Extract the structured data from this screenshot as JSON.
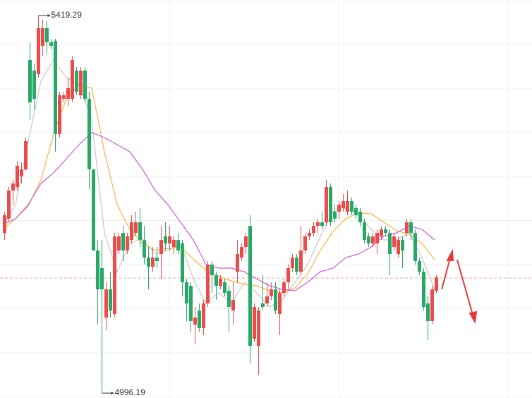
{
  "chart_data": {
    "type": "candlestick",
    "up_color": "#eb4b4b",
    "down_color": "#25a868",
    "ylim": [
      4990.7,
      5436.7
    ],
    "grid": true,
    "price_line": 5125.1,
    "price_line_color": "#f0a0a8",
    "open": [
      5175.7,
      5191.6,
      5223.2,
      5227.1,
      5239.0,
      5246.9,
      5369.5,
      5357.6,
      5353.7,
      5385.3,
      5405.1,
      5389.3,
      5390.8,
      5286.5,
      5326.0,
      5326.0,
      5326.0,
      5357.6,
      5329.9,
      5357.6,
      5326.0,
      5246.9,
      5156.0,
      5136.2,
      5080.8,
      5112.5,
      5084.8,
      5156.0,
      5175.7,
      5156.0,
      5167.8,
      5175.7,
      5187.6,
      5167.8,
      5148.1,
      5137.8,
      5148.1,
      5152.0,
      5171.8,
      5163.9,
      5159.9,
      5167.8,
      5163.9,
      5120.4,
      5116.4,
      5072.9,
      5088.8,
      5069.0,
      5096.7,
      5140.2,
      5128.3,
      5116.4,
      5120.4,
      5110.9,
      5088.8,
      5132.2,
      5148.1,
      5159.9,
      5183.6,
      5057.1,
      5049.2,
      5096.7,
      5096.7,
      5104.6,
      5112.5,
      5084.8,
      5108.5,
      5120.4,
      5136.2,
      5148.1,
      5132.2,
      5156.0,
      5171.8,
      5175.7,
      5183.6,
      5187.6,
      5187.6,
      5227.1,
      5199.5,
      5199.5,
      5203.4,
      5199.5,
      5211.3,
      5203.4,
      5199.5,
      5187.6,
      5171.8,
      5163.9,
      5163.9,
      5171.8,
      5179.7,
      5175.7,
      5159.9,
      5152.0,
      5167.8,
      5175.7,
      5187.6,
      5175.7,
      5144.1,
      5132.2,
      5096.7,
      5076.9,
      5110.9
    ],
    "close": [
      5195.5,
      5223.2,
      5231.1,
      5250.9,
      5246.9,
      5278.5,
      5322.0,
      5326.0,
      5405.1,
      5405.1,
      5389.3,
      5385.3,
      5286.5,
      5329.9,
      5329.9,
      5337.9,
      5369.5,
      5333.9,
      5357.6,
      5326.0,
      5246.9,
      5156.0,
      5112.5,
      5112.5,
      5112.5,
      5088.8,
      5171.8,
      5171.8,
      5156.0,
      5171.8,
      5187.6,
      5187.6,
      5167.8,
      5148.1,
      5137.8,
      5148.1,
      5144.1,
      5167.8,
      5163.9,
      5171.8,
      5167.8,
      5156.0,
      5120.4,
      5096.7,
      5076.9,
      5080.8,
      5069.0,
      5096.7,
      5140.2,
      5128.3,
      5116.4,
      5124.3,
      5108.5,
      5092.7,
      5100.6,
      5152.0,
      5159.9,
      5171.8,
      5049.2,
      5092.7,
      5088.8,
      5092.7,
      5104.6,
      5112.5,
      5088.8,
      5108.5,
      5120.4,
      5136.2,
      5148.1,
      5132.2,
      5156.0,
      5171.8,
      5175.7,
      5183.6,
      5187.6,
      5183.6,
      5227.1,
      5187.6,
      5191.6,
      5207.4,
      5211.3,
      5211.3,
      5199.5,
      5195.5,
      5187.6,
      5167.8,
      5163.9,
      5171.8,
      5175.7,
      5179.7,
      5175.7,
      5152.0,
      5171.8,
      5167.8,
      5156.0,
      5187.6,
      5175.7,
      5144.1,
      5132.2,
      5092.7,
      5076.9,
      5112.5,
      5125.9
    ],
    "high": [
      5199.5,
      5227.1,
      5235.1,
      5256.4,
      5254.8,
      5282.5,
      5389.3,
      5365.5,
      5419.29,
      5414.6,
      5413.0,
      5393.2,
      5393.2,
      5333.9,
      5333.9,
      5349.7,
      5373.4,
      5361.6,
      5361.6,
      5361.6,
      5333.9,
      5246.9,
      5167.8,
      5167.8,
      5120.4,
      5132.2,
      5175.7,
      5175.7,
      5183.6,
      5175.7,
      5195.5,
      5199.5,
      5203.4,
      5183.6,
      5159.9,
      5159.9,
      5159.9,
      5183.6,
      5187.6,
      5183.6,
      5171.8,
      5175.7,
      5167.8,
      5124.3,
      5120.4,
      5092.7,
      5096.7,
      5100.6,
      5144.1,
      5144.1,
      5132.2,
      5128.3,
      5124.3,
      5116.4,
      5120.4,
      5167.8,
      5163.9,
      5175.7,
      5195.5,
      5096.7,
      5092.7,
      5128.3,
      5120.4,
      5120.4,
      5120.4,
      5112.5,
      5124.3,
      5140.2,
      5152.0,
      5152.0,
      5183.6,
      5175.7,
      5179.7,
      5187.6,
      5191.6,
      5199.5,
      5235.1,
      5231.1,
      5207.4,
      5211.3,
      5219.2,
      5223.2,
      5215.3,
      5207.4,
      5203.4,
      5191.6,
      5175.7,
      5175.7,
      5179.7,
      5183.6,
      5183.6,
      5179.7,
      5175.7,
      5171.8,
      5171.8,
      5191.6,
      5191.6,
      5179.7,
      5148.1,
      5136.2,
      5104.6,
      5116.4,
      5128.3
    ],
    "low": [
      5167.8,
      5187.6,
      5207.4,
      5223.2,
      5231.1,
      5245.3,
      5302.3,
      5314.1,
      5349.7,
      5373.4,
      5377.4,
      5381.3,
      5266.7,
      5282.5,
      5322.0,
      5318.1,
      5322.0,
      5329.9,
      5326.0,
      5322.0,
      5224.8,
      5156.0,
      5072.9,
      4996.19,
      5066.6,
      5080.8,
      5080.8,
      5152.0,
      5144.1,
      5152.0,
      5163.9,
      5171.8,
      5159.9,
      5140.2,
      5112.5,
      5132.2,
      5136.2,
      5124.3,
      5156.0,
      5156.0,
      5152.0,
      5152.0,
      5104.6,
      5076.9,
      5065.0,
      5050.8,
      5065.0,
      5061.1,
      5092.7,
      5108.5,
      5100.6,
      5112.5,
      5104.6,
      5065.0,
      5072.9,
      5120.4,
      5144.1,
      5152.0,
      5029.4,
      5053.2,
      5016.0,
      5088.8,
      5092.7,
      5100.6,
      5084.8,
      5061.1,
      5104.6,
      5112.5,
      5132.2,
      5128.3,
      5128.3,
      5152.0,
      5167.8,
      5171.8,
      5175.7,
      5179.7,
      5183.6,
      5183.6,
      5187.6,
      5191.6,
      5199.5,
      5195.5,
      5195.5,
      5191.6,
      5183.6,
      5163.9,
      5159.9,
      5159.9,
      5152.0,
      5167.8,
      5171.8,
      5128.3,
      5156.0,
      5148.1,
      5136.2,
      5171.8,
      5167.8,
      5140.2,
      5128.3,
      5088.8,
      5055.5,
      5072.9,
      5108.5
    ],
    "lines": [
      {
        "color": "#c8c8c8",
        "x": [
          0,
          3,
          6,
          9,
          12,
          15,
          18,
          21,
          24,
          27,
          30,
          33,
          36,
          39,
          42,
          45,
          48,
          51,
          54,
          57,
          60,
          63,
          66,
          69,
          72,
          75,
          78,
          81,
          84,
          87,
          90,
          93,
          96,
          99,
          102
        ],
        "values": [
          5183.6,
          5207.4,
          5278.5,
          5345.8,
          5369.5,
          5349.7,
          5341.8,
          5302.3,
          5175.7,
          5132.2,
          5163.9,
          5169.4,
          5152.0,
          5156.0,
          5163.9,
          5124.3,
          5096.7,
          5108.5,
          5096.7,
          5120.4,
          5108.5,
          5092.7,
          5100.6,
          5120.4,
          5140.2,
          5171.8,
          5199.5,
          5203.4,
          5195.5,
          5179.7,
          5167.8,
          5167.8,
          5175.7,
          5148.1,
          5112.5
        ]
      },
      {
        "color": "#f5b63f",
        "x": [
          0,
          3,
          6,
          9,
          12,
          15,
          18,
          21,
          24,
          27,
          30,
          33,
          36,
          39,
          42,
          45,
          48,
          51,
          54,
          57,
          60,
          63,
          66,
          69,
          72,
          75,
          78,
          81,
          84,
          87,
          90,
          93,
          96,
          99,
          102
        ],
        "values": [
          5179.7,
          5191.6,
          5205.8,
          5235.1,
          5286.5,
          5326.0,
          5341.8,
          5337.9,
          5266.7,
          5207.4,
          5179.7,
          5163.9,
          5156.0,
          5158.3,
          5159.9,
          5146.5,
          5133.8,
          5126.7,
          5122.0,
          5118.0,
          5116.4,
          5110.9,
          5108.5,
          5114.1,
          5129.9,
          5156.0,
          5177.3,
          5191.6,
          5197.9,
          5197.1,
          5187.6,
          5178.1,
          5174.2,
          5163.9,
          5145.7
        ]
      },
      {
        "color": "#c85ad6",
        "x": [
          0,
          3,
          6,
          9,
          12,
          15,
          18,
          21,
          24,
          27,
          30,
          33,
          36,
          39,
          42,
          45,
          48,
          51,
          54,
          57,
          60,
          63,
          66,
          69,
          72,
          75,
          78,
          81,
          84,
          87,
          90,
          93,
          96,
          99,
          102
        ],
        "values": [
          5185.2,
          5191.6,
          5207.4,
          5231.1,
          5243.0,
          5258.8,
          5274.6,
          5288.0,
          5282.5,
          5274.6,
          5266.7,
          5246.9,
          5223.2,
          5207.4,
          5187.6,
          5167.8,
          5140.2,
          5136.2,
          5136.2,
          5132.2,
          5124.3,
          5116.4,
          5112.5,
          5110.9,
          5120.4,
          5132.2,
          5136.2,
          5148.1,
          5152.0,
          5159.9,
          5171.8,
          5175.7,
          5183.6,
          5179.7,
          5167.8
        ]
      }
    ]
  }
}
